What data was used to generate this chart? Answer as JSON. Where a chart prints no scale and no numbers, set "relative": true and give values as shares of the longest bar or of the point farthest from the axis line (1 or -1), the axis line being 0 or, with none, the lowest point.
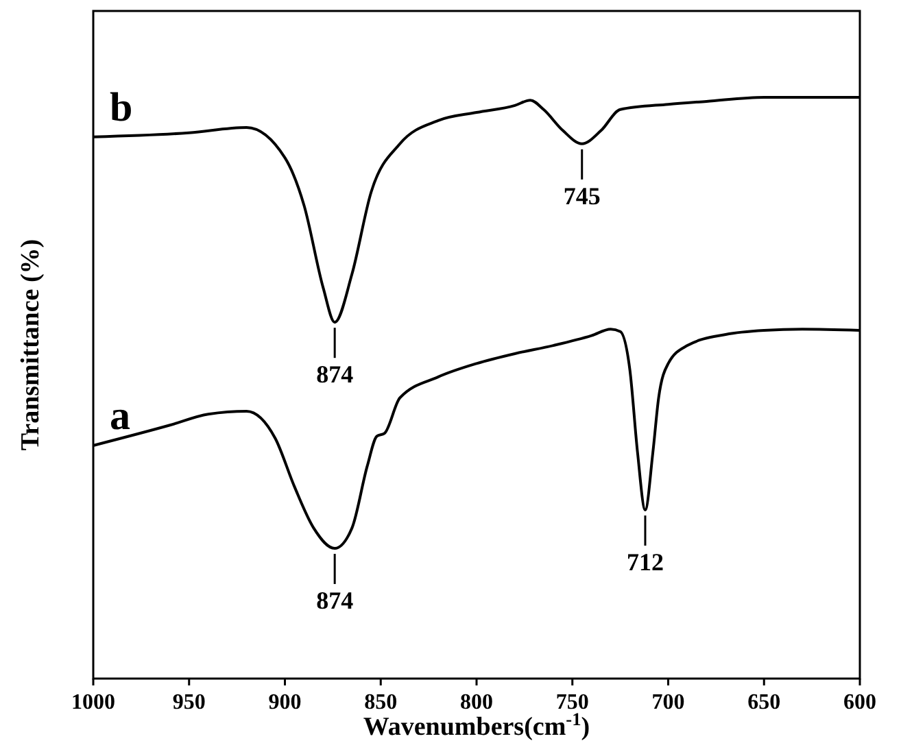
{
  "chart_data": {
    "type": "line",
    "relative": true,
    "xlabel": "Wavenumbers(cm$^{-1}$)",
    "ylabel": "Transmittance (%)",
    "xlim": [
      1000,
      600
    ],
    "xticks": [
      1000,
      950,
      900,
      850,
      800,
      750,
      700,
      650,
      600
    ],
    "grid": false,
    "marker": "none",
    "line_style": "solid",
    "series": [
      {
        "name": "a",
        "color": "#000000",
        "x": [
          1000,
          960,
          940,
          920,
          905,
          895,
          885,
          874,
          865,
          857,
          852,
          848,
          840,
          820,
          800,
          780,
          760,
          740,
          730,
          725,
          720,
          716,
          712,
          708,
          705,
          700,
          690,
          670,
          650,
          630,
          600
        ],
        "values": [
          0.401,
          0.436,
          0.455,
          0.46,
          0.413,
          0.33,
          0.259,
          0.224,
          0.259,
          0.366,
          0.417,
          0.422,
          0.483,
          0.519,
          0.542,
          0.559,
          0.573,
          0.59,
          0.601,
          0.597,
          0.531,
          0.389,
          0.29,
          0.389,
          0.483,
          0.542,
          0.573,
          0.592,
          0.599,
          0.601,
          0.599
        ]
      },
      {
        "name": "b",
        "color": "#000000",
        "x": [
          1000,
          950,
          920,
          900,
          890,
          880,
          874,
          865,
          855,
          840,
          820,
          800,
          780,
          772,
          765,
          755,
          745,
          735,
          725,
          700,
          680,
          650,
          625,
          600
        ],
        "values": [
          0.932,
          0.939,
          0.948,
          0.896,
          0.814,
          0.672,
          0.613,
          0.696,
          0.837,
          0.92,
          0.96,
          0.974,
          0.986,
          0.995,
          0.979,
          0.943,
          0.92,
          0.943,
          0.979,
          0.988,
          0.993,
          1.0,
          1.0,
          1.0
        ]
      }
    ],
    "annotations": [
      {
        "text": "874",
        "x": 874,
        "y": 0.613
      },
      {
        "text": "745",
        "x": 745,
        "y": 0.92
      },
      {
        "text": "874",
        "x": 874,
        "y": 0.224
      },
      {
        "text": "712",
        "x": 712,
        "y": 0.29
      }
    ]
  }
}
